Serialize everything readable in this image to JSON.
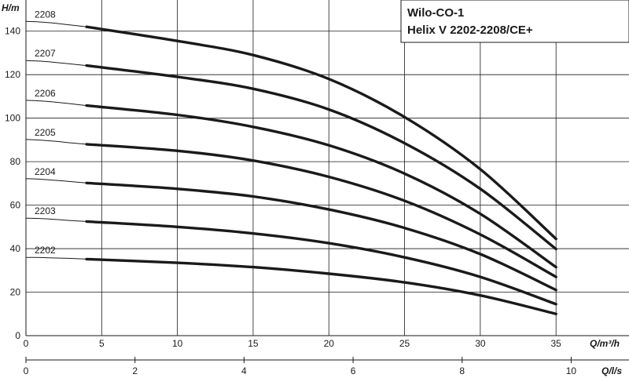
{
  "chart_data": {
    "type": "line",
    "title": [
      "Wilo-CO-1",
      "Helix V 2202-2208/CE+"
    ],
    "ylabel": "H/m",
    "xlabel": "Q/m³/h",
    "x2label": "Q/l/s",
    "ylim": [
      0,
      150
    ],
    "xlim": [
      0,
      40
    ],
    "yticks": [
      0,
      20,
      40,
      60,
      80,
      100,
      120,
      140
    ],
    "xticks": [
      0,
      5,
      10,
      15,
      20,
      25,
      30,
      35
    ],
    "x2ticks": [
      0,
      2,
      4,
      6,
      8,
      10
    ],
    "x2_per_x": 0.27778,
    "grid": true,
    "series": [
      {
        "name": "2208",
        "x": [
          0,
          1,
          2,
          3,
          4
        ],
        "y": [
          144.5,
          144.2,
          143.6,
          142.8,
          142.0
        ],
        "x_main": [
          4,
          10,
          15,
          20,
          25,
          30,
          35
        ],
        "y_main": [
          142.0,
          135.5,
          129.0,
          118.0,
          100.5,
          76.5,
          44.5
        ]
      },
      {
        "name": "2207",
        "x": [
          0,
          1,
          2,
          3,
          4
        ],
        "y": [
          126.5,
          126.2,
          125.6,
          124.9,
          124.2
        ],
        "x_main": [
          4,
          10,
          15,
          20,
          25,
          30,
          35
        ],
        "y_main": [
          124.2,
          119.0,
          113.5,
          104.0,
          88.5,
          67.5,
          39.8
        ]
      },
      {
        "name": "2206",
        "x": [
          0,
          1,
          2,
          3,
          4
        ],
        "y": [
          108.2,
          107.9,
          107.3,
          106.6,
          105.8
        ],
        "x_main": [
          4,
          10,
          15,
          20,
          25,
          30,
          35
        ],
        "y_main": [
          105.8,
          101.5,
          96.0,
          87.5,
          74.5,
          56.0,
          31.5
        ]
      },
      {
        "name": "2205",
        "x": [
          0,
          1,
          2,
          3,
          4
        ],
        "y": [
          90.2,
          89.9,
          89.3,
          88.6,
          88.0
        ],
        "x_main": [
          4,
          10,
          15,
          20,
          25,
          30,
          35
        ],
        "y_main": [
          88.0,
          85.0,
          80.5,
          73.0,
          62.0,
          46.5,
          27.0
        ]
      },
      {
        "name": "2204",
        "x": [
          0,
          1,
          2,
          3,
          4
        ],
        "y": [
          72.2,
          71.9,
          71.4,
          70.8,
          70.2
        ],
        "x_main": [
          4,
          10,
          15,
          20,
          25,
          30,
          35
        ],
        "y_main": [
          70.2,
          67.5,
          64.0,
          58.0,
          49.5,
          37.5,
          21.0
        ]
      },
      {
        "name": "2203",
        "x": [
          0,
          1,
          2,
          3,
          4
        ],
        "y": [
          54.0,
          53.8,
          53.4,
          52.9,
          52.5
        ],
        "x_main": [
          4,
          10,
          15,
          20,
          25,
          30,
          35
        ],
        "y_main": [
          52.5,
          50.0,
          47.0,
          42.5,
          36.0,
          27.0,
          14.5
        ]
      },
      {
        "name": "2202",
        "x": [
          0,
          1,
          2,
          3,
          4
        ],
        "y": [
          36.0,
          35.9,
          35.7,
          35.5,
          35.2
        ],
        "x_main": [
          4,
          10,
          15,
          20,
          25,
          30,
          35
        ],
        "y_main": [
          35.2,
          33.5,
          31.5,
          28.5,
          24.5,
          18.5,
          10.0
        ]
      }
    ],
    "curve_labels": [
      {
        "text": "2208",
        "at_y": 144.5
      },
      {
        "text": "2207",
        "at_y": 126.5
      },
      {
        "text": "2206",
        "at_y": 108.2
      },
      {
        "text": "2205",
        "at_y": 90.2
      },
      {
        "text": "2204",
        "at_y": 72.2
      },
      {
        "text": "2203",
        "at_y": 54.0
      },
      {
        "text": "2202",
        "at_y": 36.0
      }
    ]
  },
  "colors": {
    "ink": "#1a1a1a",
    "background": "#ffffff"
  }
}
